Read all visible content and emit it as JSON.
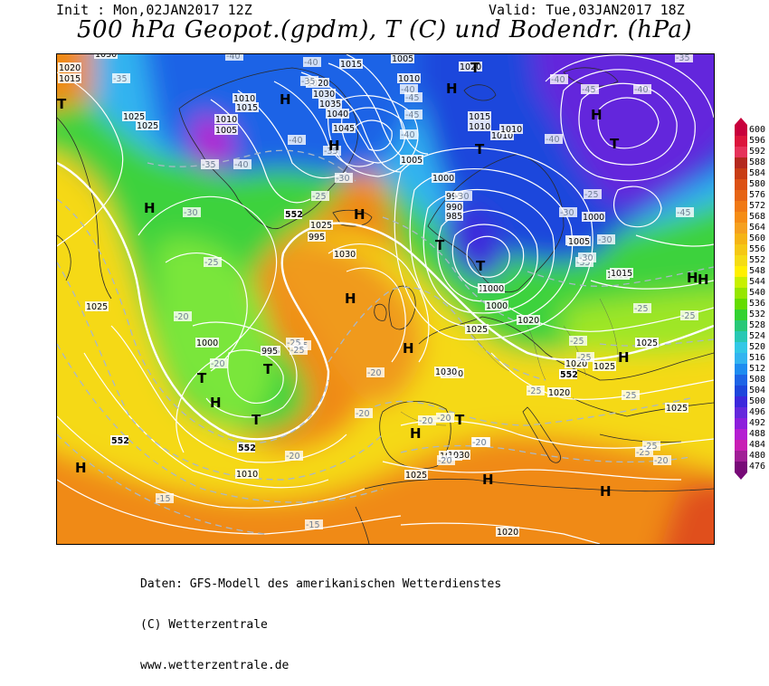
{
  "header": {
    "init": "Init : Mon,02JAN2017 12Z",
    "valid": "Valid: Tue,03JAN2017 18Z",
    "title": "500 hPa Geopot.(gpdm), T (C) und Bodendr. (hPa)"
  },
  "colorbar": {
    "labels": [
      "600",
      "596",
      "592",
      "588",
      "584",
      "580",
      "576",
      "572",
      "568",
      "564",
      "560",
      "556",
      "552",
      "548",
      "544",
      "540",
      "536",
      "532",
      "528",
      "524",
      "520",
      "516",
      "512",
      "508",
      "504",
      "500",
      "496",
      "492",
      "488",
      "484",
      "480",
      "476"
    ],
    "colors": [
      "#c8003c",
      "#dc143c",
      "#e6325a",
      "#b4281e",
      "#c83c14",
      "#dc5014",
      "#e66414",
      "#f07814",
      "#f58c14",
      "#f5a01e",
      "#f5b414",
      "#f5c814",
      "#f5dc14",
      "#fff000",
      "#c8f000",
      "#96e600",
      "#64dc00",
      "#32d232",
      "#28c878",
      "#28c8b4",
      "#32c8e6",
      "#32b4f0",
      "#1e8cf0",
      "#1e64e6",
      "#1e46dc",
      "#3c28dc",
      "#6428dc",
      "#8c1edc",
      "#b41ed2",
      "#c81eb4",
      "#a01e96",
      "#780a78"
    ]
  },
  "map": {
    "pressure_labels": [
      "1020",
      "1015",
      "1010",
      "1025",
      "1030",
      "1000",
      "995",
      "990",
      "985",
      "1005",
      "1035",
      "1040",
      "1045"
    ],
    "pressure_values_shown": [
      {
        "t": "1030"
      },
      {
        "t": "1020"
      },
      {
        "t": "1015"
      },
      {
        "t": "1010"
      },
      {
        "t": "1015"
      },
      {
        "t": "1010"
      },
      {
        "t": "1005"
      },
      {
        "t": "1025"
      },
      {
        "t": "1025"
      },
      {
        "t": "1020"
      },
      {
        "t": "1030"
      },
      {
        "t": "1035"
      },
      {
        "t": "1040"
      },
      {
        "t": "1045"
      },
      {
        "t": "1015"
      },
      {
        "t": "1005"
      },
      {
        "t": "1010"
      },
      {
        "t": "1020"
      },
      {
        "t": "1015"
      },
      {
        "t": "1010"
      },
      {
        "t": "1010"
      },
      {
        "t": "1005"
      },
      {
        "t": "1000"
      },
      {
        "t": "995"
      },
      {
        "t": "990"
      },
      {
        "t": "985"
      },
      {
        "t": "995"
      },
      {
        "t": "995"
      },
      {
        "t": "1000"
      },
      {
        "t": "1005"
      },
      {
        "t": "1015"
      },
      {
        "t": "1030"
      },
      {
        "t": "1000"
      },
      {
        "t": "1025"
      },
      {
        "t": "1025"
      },
      {
        "t": "1030"
      },
      {
        "t": "1000"
      },
      {
        "t": "1010"
      },
      {
        "t": "1020"
      },
      {
        "t": "1025"
      },
      {
        "t": "1020"
      },
      {
        "t": "1020"
      },
      {
        "t": "1025"
      },
      {
        "t": "1030"
      },
      {
        "t": "1000"
      },
      {
        "t": "995"
      },
      {
        "t": "1000"
      },
      {
        "t": "1005"
      },
      {
        "t": "1010"
      },
      {
        "t": "1015"
      },
      {
        "t": "1025"
      },
      {
        "t": "1025"
      },
      {
        "t": "1025"
      },
      {
        "t": "1030"
      },
      {
        "t": "1025"
      },
      {
        "t": "1025"
      },
      {
        "t": "1020"
      }
    ],
    "temp_labels": [
      "-40",
      "-35",
      "-30",
      "-25",
      "-20",
      "-15",
      "-45"
    ],
    "temps_shown": [
      "-40",
      "-40",
      "-35",
      "-35",
      "-40",
      "-45",
      "-45",
      "-40",
      "-35",
      "-40",
      "-40",
      "-35",
      "-30",
      "-25",
      "-30",
      "-25",
      "-20",
      "-20",
      "-25",
      "-25",
      "-20",
      "-20",
      "-20",
      "-20",
      "-20",
      "-25",
      "-25",
      "-25",
      "-30",
      "-30",
      "-30",
      "-40",
      "-40",
      "-35",
      "-35",
      "-40",
      "-45",
      "-45",
      "-25",
      "-25",
      "-20",
      "-20",
      "-20",
      "-15",
      "-15",
      "-25",
      "-25",
      "-25",
      "-30",
      "-25",
      "-20",
      "-25"
    ],
    "geopot_labels": [
      "552",
      "552",
      "552",
      "552"
    ],
    "highs_label": "H",
    "lows_label": "T"
  },
  "footer": {
    "line1": "Daten: GFS-Modell des amerikanischen Wetterdienstes",
    "line2": "(C) Wetterzentrale",
    "line3": "www.wetterzentrale.de"
  }
}
